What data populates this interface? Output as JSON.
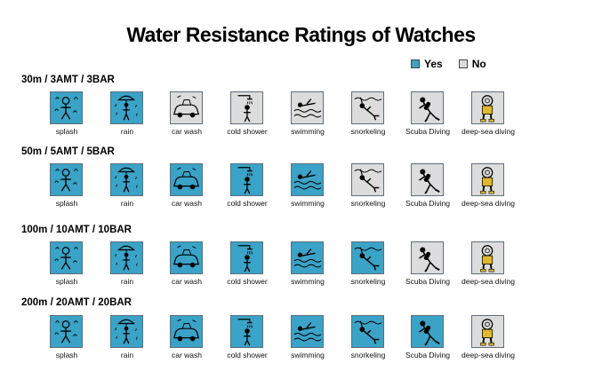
{
  "title": "Water Resistance Ratings of Watches",
  "colors": {
    "yes": "#3aa3c7",
    "no": "#dcdcdc"
  },
  "legend": {
    "yes": "Yes",
    "no": "No"
  },
  "activities": [
    "splash",
    "rain",
    "car wash",
    "cold shower",
    "swimming",
    "snorkeling",
    "Scuba Diving",
    "deep-sea diving"
  ],
  "icons": [
    "splash-icon",
    "rain-icon",
    "car-wash-icon",
    "cold-shower-icon",
    "swimming-icon",
    "snorkeling-icon",
    "scuba-diving-icon",
    "deep-sea-diving-icon"
  ],
  "ratings": [
    {
      "label": "30m / 3AMT / 3BAR",
      "yes": [
        true,
        true,
        false,
        false,
        false,
        false,
        false,
        false
      ]
    },
    {
      "label": "50m / 5AMT / 5BAR",
      "yes": [
        true,
        true,
        true,
        true,
        true,
        false,
        false,
        false
      ]
    },
    {
      "label": "100m / 10AMT / 10BAR",
      "yes": [
        true,
        true,
        true,
        true,
        true,
        true,
        false,
        false
      ]
    },
    {
      "label": "200m / 20AMT / 20BAR",
      "yes": [
        true,
        true,
        true,
        true,
        true,
        true,
        true,
        false
      ]
    }
  ]
}
